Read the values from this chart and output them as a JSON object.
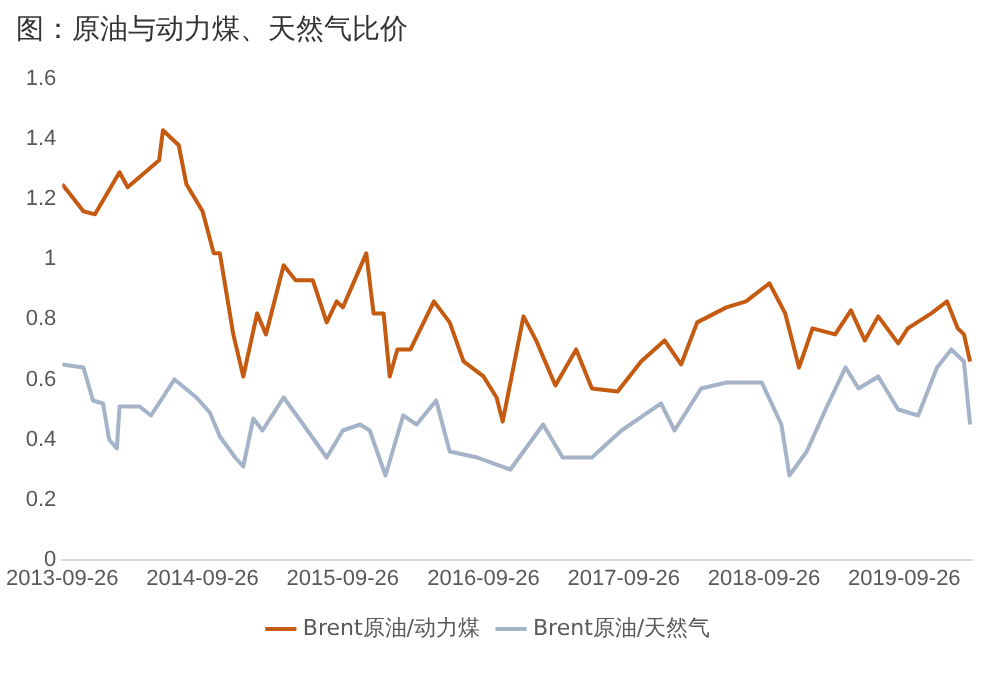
{
  "chart_data": {
    "type": "line",
    "title": "图：原油与动力煤、天然气比价",
    "legend": "bottom",
    "grid": false,
    "marker": "none",
    "line_style": "solid",
    "xlim": [
      "2013-09-26",
      "2020-03-20"
    ],
    "xticks": [
      "2013-09-26",
      "2014-09-26",
      "2015-09-26",
      "2016-09-26",
      "2017-09-26",
      "2018-09-26",
      "2019-09-26"
    ],
    "ylim": [
      0,
      1.6
    ],
    "yticks": [
      0,
      0.2,
      0.4,
      0.6,
      0.8,
      1,
      1.2,
      1.4,
      1.6
    ],
    "series": [
      {
        "name": "Brent原油/动力煤",
        "color": "#c55a11",
        "x": [
          "2013-09-26",
          "2013-11-20",
          "2013-12-20",
          "2014-02-22",
          "2014-03-15",
          "2014-06-05",
          "2014-06-15",
          "2014-07-26",
          "2014-08-15",
          "2014-09-26",
          "2014-10-25",
          "2014-11-10",
          "2014-12-15",
          "2015-01-10",
          "2015-02-15",
          "2015-03-10",
          "2015-04-25",
          "2015-05-26",
          "2015-07-10",
          "2015-08-15",
          "2015-09-10",
          "2015-09-26",
          "2015-11-26",
          "2015-12-15",
          "2016-01-10",
          "2016-01-26",
          "2016-02-15",
          "2016-03-20",
          "2016-05-20",
          "2016-06-30",
          "2016-08-05",
          "2016-09-26",
          "2016-10-30",
          "2016-11-15",
          "2017-01-08",
          "2017-02-10",
          "2017-04-01",
          "2017-05-25",
          "2017-07-05",
          "2017-09-10",
          "2017-11-10",
          "2018-01-10",
          "2018-02-22",
          "2018-04-05",
          "2018-06-20",
          "2018-08-10",
          "2018-10-10",
          "2018-11-20",
          "2018-12-26",
          "2019-01-30",
          "2019-03-30",
          "2019-05-10",
          "2019-06-15",
          "2019-07-20",
          "2019-09-10",
          "2019-10-05",
          "2019-12-05",
          "2020-01-15",
          "2020-02-12",
          "2020-02-28",
          "2020-03-15"
        ],
        "values": [
          1.25,
          1.16,
          1.15,
          1.29,
          1.24,
          1.33,
          1.43,
          1.38,
          1.25,
          1.16,
          1.02,
          1.02,
          0.75,
          0.61,
          0.82,
          0.75,
          0.98,
          0.93,
          0.93,
          0.79,
          0.86,
          0.84,
          1.02,
          0.82,
          0.82,
          0.61,
          0.7,
          0.7,
          0.86,
          0.79,
          0.66,
          0.61,
          0.54,
          0.46,
          0.81,
          0.73,
          0.58,
          0.7,
          0.57,
          0.56,
          0.66,
          0.73,
          0.65,
          0.79,
          0.84,
          0.86,
          0.92,
          0.82,
          0.64,
          0.77,
          0.75,
          0.83,
          0.73,
          0.81,
          0.72,
          0.77,
          0.82,
          0.86,
          0.77,
          0.75,
          0.66
        ]
      },
      {
        "name": "Brent原油/天然气",
        "color": "#a5b3c8",
        "x": [
          "2013-09-26",
          "2013-11-20",
          "2013-12-15",
          "2014-01-10",
          "2014-01-26",
          "2014-02-15",
          "2014-02-22",
          "2014-04-15",
          "2014-05-15",
          "2014-07-15",
          "2014-09-10",
          "2014-10-15",
          "2014-11-10",
          "2014-12-20",
          "2015-01-10",
          "2015-02-05",
          "2015-03-01",
          "2015-04-25",
          "2015-06-15",
          "2015-08-15",
          "2015-09-26",
          "2015-11-10",
          "2015-12-05",
          "2016-01-15",
          "2016-03-01",
          "2016-04-05",
          "2016-05-26",
          "2016-06-30",
          "2016-09-10",
          "2016-12-05",
          "2017-02-28",
          "2017-04-20",
          "2017-07-05",
          "2017-09-20",
          "2018-01-01",
          "2018-02-05",
          "2018-04-15",
          "2018-06-20",
          "2018-09-20",
          "2018-11-10",
          "2018-12-01",
          "2019-01-15",
          "2019-03-05",
          "2019-04-26",
          "2019-05-30",
          "2019-07-20",
          "2019-09-10",
          "2019-11-01",
          "2019-12-20",
          "2020-01-26",
          "2020-02-28",
          "2020-03-15"
        ],
        "values": [
          0.65,
          0.64,
          0.53,
          0.52,
          0.4,
          0.37,
          0.51,
          0.51,
          0.48,
          0.6,
          0.54,
          0.49,
          0.41,
          0.34,
          0.31,
          0.47,
          0.43,
          0.54,
          0.45,
          0.34,
          0.43,
          0.45,
          0.43,
          0.28,
          0.48,
          0.45,
          0.53,
          0.36,
          0.34,
          0.3,
          0.45,
          0.34,
          0.34,
          0.43,
          0.52,
          0.43,
          0.57,
          0.59,
          0.59,
          0.45,
          0.28,
          0.36,
          0.5,
          0.64,
          0.57,
          0.61,
          0.5,
          0.48,
          0.64,
          0.7,
          0.66,
          0.45
        ]
      }
    ]
  }
}
